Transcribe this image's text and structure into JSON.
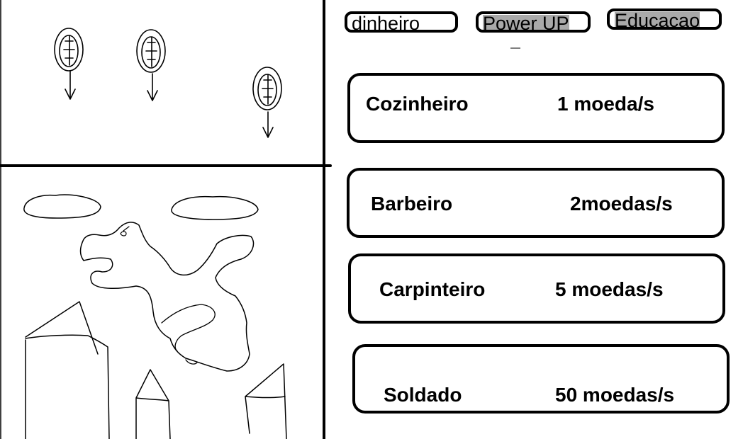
{
  "tabs": [
    {
      "label": "dinheiro"
    },
    {
      "label": "Power UP"
    },
    {
      "label": "Educaçao"
    }
  ],
  "jobs": [
    {
      "name": "Cozinheiro",
      "rate": "1 moeda/s"
    },
    {
      "name": "Barbeiro",
      "rate": "2moedas/s"
    },
    {
      "name": "Carpinteiro",
      "rate": "5 moedas/s"
    },
    {
      "name": "Soldado",
      "rate": "50 moedas/s"
    }
  ],
  "colors": {
    "ink": "#000000",
    "background": "#ffffff",
    "shade": "#a9a9a9"
  },
  "icons": [
    "coin-drop-icon",
    "coin-drop-icon",
    "coin-drop-icon"
  ]
}
